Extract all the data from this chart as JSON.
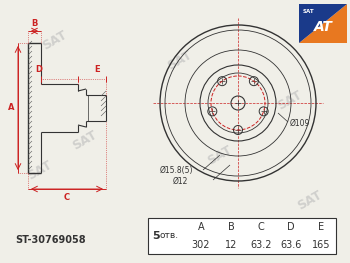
{
  "bg_color": "#f0efe8",
  "part_number": "ST-30769058",
  "holes_label": "5 отв.",
  "table_headers": [
    "A",
    "B",
    "C",
    "D",
    "E"
  ],
  "table_values": [
    "302",
    "12",
    "63.2",
    "63.6",
    "165"
  ],
  "ann_bolt_hole": "Ø15.8(5)",
  "ann_center": "Ø12",
  "ann_outer": "Ø109",
  "line_color": "#333333",
  "red_color": "#cc2222",
  "hatch_color": "#555555",
  "logo_orange": "#e87820",
  "logo_blue": "#1a3a8a",
  "sat_color": "#bbbbbb"
}
